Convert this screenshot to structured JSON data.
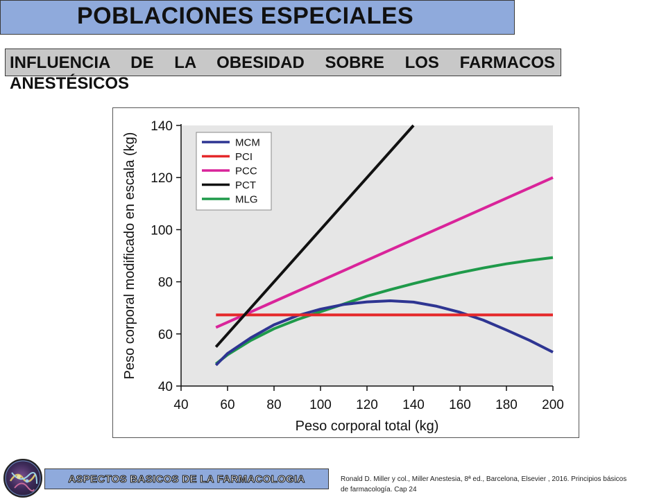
{
  "header": {
    "title": "POBLACIONES ESPECIALES",
    "subtitle_line1": "INFLUENCIA DE LA OBESIDAD SOBRE LOS FARMACOS",
    "subtitle_line2": "ANESTÉSICOS"
  },
  "footer": {
    "banner_label": "ASPECTOS BASICOS DE LA FARMACOLOGIA",
    "citation_line1": "Ronald D. Miller y col., Miller Anestesia, 8ª ed., Barcelona, Elsevier , 2016. Principios básicos",
    "citation_line2": "de farmacología. Cap 24"
  },
  "chart_data": {
    "type": "line",
    "xlabel": "Peso corporal total (kg)",
    "ylabel": "Peso corporal modificado en escala (kg)",
    "xlim": [
      40,
      200
    ],
    "ylim": [
      40,
      140
    ],
    "xticks": [
      "40",
      "60",
      "80",
      "100",
      "120",
      "140",
      "160",
      "180",
      "200"
    ],
    "yticks": [
      "40",
      "60",
      "80",
      "100",
      "120",
      "140"
    ],
    "grid": false,
    "background_color": "#e6e6e6",
    "legend_position": "top-left",
    "series": [
      {
        "name": "MCM",
        "color": "#2e3592",
        "x": [
          55,
          60,
          70,
          80,
          90,
          100,
          110,
          120,
          130,
          140,
          150,
          160,
          170,
          180,
          190,
          200
        ],
        "y": [
          48,
          52.5,
          58.5,
          63.5,
          67,
          69.5,
          71.3,
          72.3,
          72.7,
          72.2,
          70.6,
          68.3,
          65.3,
          61.5,
          57.5,
          53
        ]
      },
      {
        "name": "PCI",
        "color": "#e5282a",
        "x": [
          55,
          200
        ],
        "y": [
          67.3,
          67.3
        ]
      },
      {
        "name": "PCC",
        "color": "#d9249a",
        "x": [
          55,
          200
        ],
        "y": [
          62.5,
          120
        ]
      },
      {
        "name": "PCT",
        "color": "#111111",
        "x": [
          55,
          140
        ],
        "y": [
          55,
          140
        ]
      },
      {
        "name": "MLG",
        "color": "#1f9a4a",
        "x": [
          55,
          60,
          70,
          80,
          90,
          100,
          110,
          120,
          130,
          140,
          150,
          160,
          170,
          180,
          190,
          200
        ],
        "y": [
          48.5,
          52,
          57.5,
          62,
          65.5,
          68.5,
          71.5,
          74.5,
          77,
          79.3,
          81.5,
          83.5,
          85.3,
          86.9,
          88.2,
          89.3
        ]
      }
    ]
  }
}
